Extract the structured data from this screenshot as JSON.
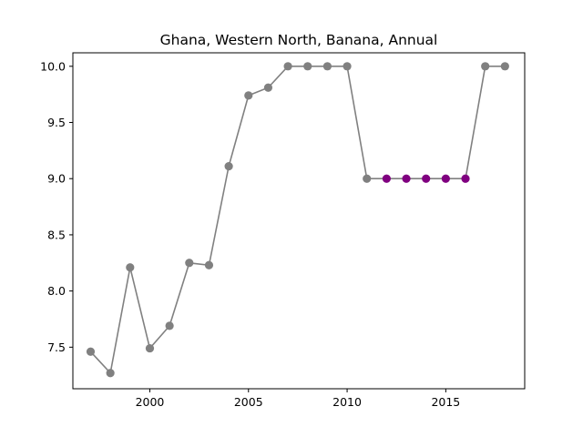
{
  "chart_data": {
    "type": "line",
    "title": "Ghana, Western North, Banana, Annual",
    "xlabel": "",
    "ylabel": "",
    "xlim": [
      1996.1,
      2019.0
    ],
    "ylim": [
      7.13,
      10.12
    ],
    "xticks": [
      2000,
      2005,
      2010,
      2015
    ],
    "yticks": [
      7.5,
      8.0,
      8.5,
      9.0,
      9.5,
      10.0
    ],
    "xtick_labels": [
      "2000",
      "2005",
      "2010",
      "2015"
    ],
    "ytick_labels": [
      "7.5",
      "8.0",
      "8.5",
      "9.0",
      "9.5",
      "10.0"
    ],
    "grid": false,
    "line_color": "#808080",
    "default_marker_color": "#808080",
    "highlight_marker_color": "#800080",
    "x": [
      1997,
      1998,
      1999,
      2000,
      2001,
      2002,
      2003,
      2004,
      2005,
      2006,
      2007,
      2008,
      2009,
      2010,
      2011,
      2012,
      2013,
      2014,
      2015,
      2016,
      2017,
      2018
    ],
    "y": [
      7.46,
      7.27,
      8.21,
      7.49,
      7.69,
      8.25,
      8.23,
      9.11,
      9.74,
      9.81,
      10.0,
      10.0,
      10.0,
      10.0,
      9.0,
      9.0,
      9.0,
      9.0,
      9.0,
      9.0,
      10.0,
      10.0
    ],
    "highlighted_x": [
      2012,
      2013,
      2014,
      2015,
      2016
    ]
  }
}
